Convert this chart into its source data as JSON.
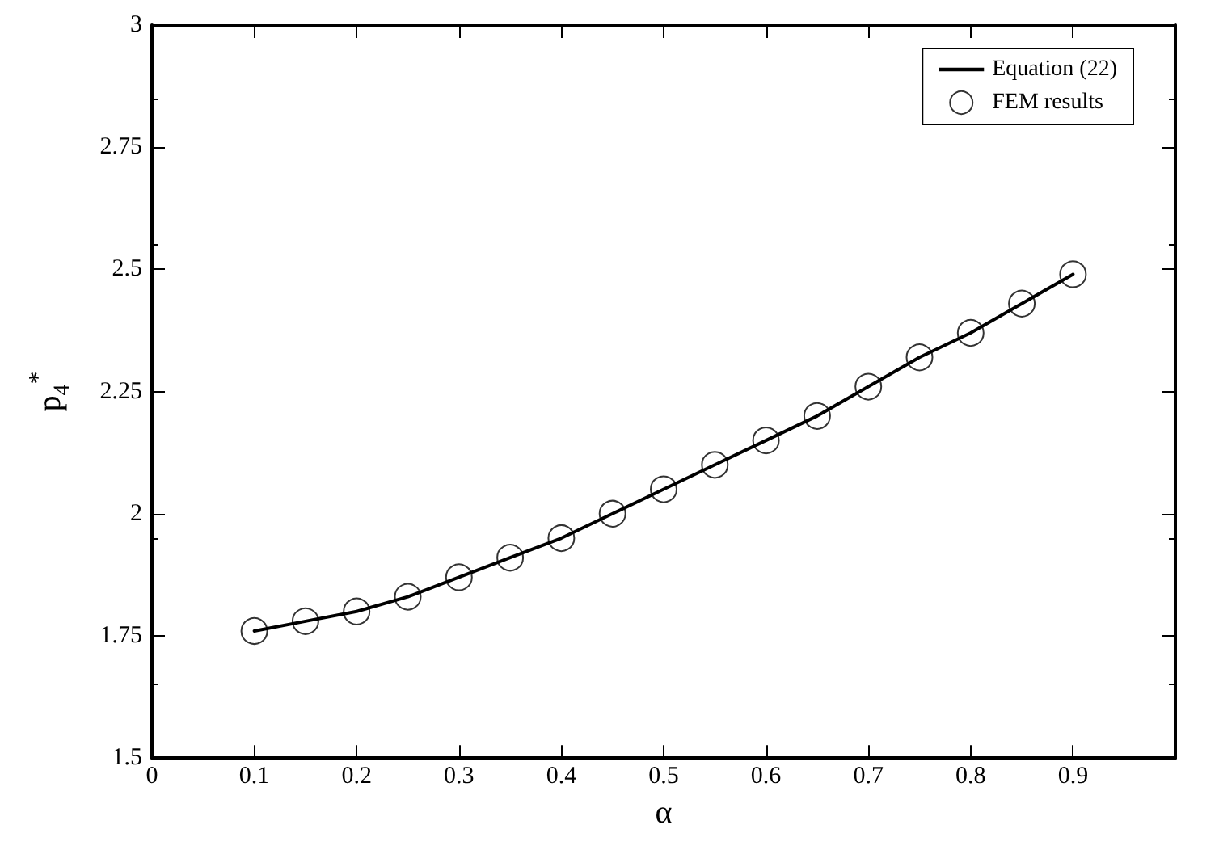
{
  "chart_data": {
    "type": "line",
    "xlabel": "α",
    "ylabel": "p$_{4}$$^{*}$",
    "xlim": [
      0,
      1
    ],
    "ylim": [
      1.5,
      3
    ],
    "xticks": [
      0,
      0.1,
      0.2,
      0.3,
      0.4,
      0.5,
      0.6,
      0.7,
      0.8,
      0.9
    ],
    "yticks": [
      1.5,
      1.75,
      2,
      2.25,
      2.5,
      2.75,
      3
    ],
    "grid": false,
    "legend": "top right",
    "x": [
      0.1,
      0.15,
      0.2,
      0.25,
      0.3,
      0.35,
      0.4,
      0.45,
      0.5,
      0.55,
      0.6,
      0.65,
      0.7,
      0.75,
      0.8,
      0.85,
      0.9
    ],
    "series": [
      {
        "name": "Equation (22)",
        "color": "#000000",
        "marker": "none",
        "line_style": "solid",
        "values": [
          1.76,
          1.78,
          1.8,
          1.83,
          1.87,
          1.91,
          1.95,
          2.0,
          2.05,
          2.1,
          2.15,
          2.2,
          2.26,
          2.32,
          2.37,
          2.43,
          2.49
        ]
      },
      {
        "name": "FEM results",
        "type": "scatter",
        "color": "#000000",
        "marker": "circle",
        "values": [
          1.76,
          1.78,
          1.8,
          1.83,
          1.87,
          1.91,
          1.95,
          2.0,
          2.05,
          2.1,
          2.15,
          2.2,
          2.26,
          2.32,
          2.37,
          2.43,
          2.49
        ]
      }
    ]
  }
}
